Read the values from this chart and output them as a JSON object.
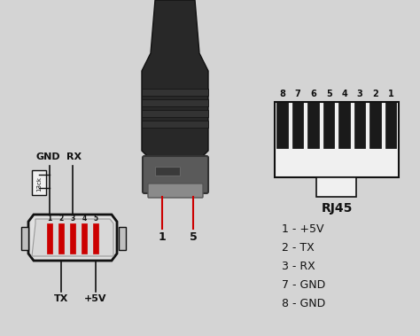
{
  "background_color": "#d4d4d4",
  "pin_labels_top": [
    "GND",
    "RX"
  ],
  "pin_numbers_micro": [
    "1",
    "2",
    "3",
    "4",
    "5"
  ],
  "rj45_numbers": [
    "8",
    "7",
    "6",
    "5",
    "4",
    "3",
    "2",
    "1"
  ],
  "rj45_label": "RJ45",
  "legend": [
    "1 - +5V",
    "2 - TX",
    "3 - RX",
    "7 - GND",
    "8 - GND"
  ],
  "bottom_labels_left": "TX",
  "bottom_labels_right": "+5V",
  "resistor_label": "13ck",
  "text_color": "#111111",
  "red_color": "#cc0000",
  "line_color": "#111111",
  "white_fill": "#f0f0f0",
  "dark_fill": "#1a1a1a",
  "connector_fill": "#e0e0e0",
  "pin1_label": "1",
  "pin5_label": "5"
}
